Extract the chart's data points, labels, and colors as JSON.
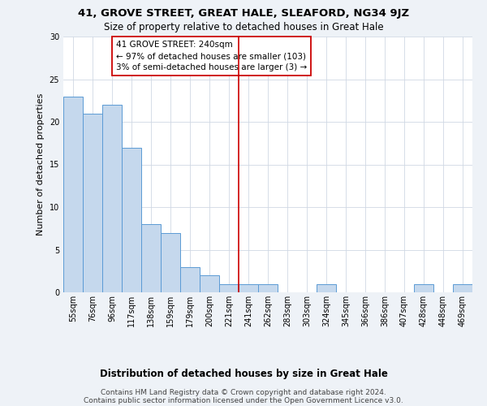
{
  "title": "41, GROVE STREET, GREAT HALE, SLEAFORD, NG34 9JZ",
  "subtitle": "Size of property relative to detached houses in Great Hale",
  "xlabel": "Distribution of detached houses by size in Great Hale",
  "ylabel": "Number of detached properties",
  "bar_labels": [
    "55sqm",
    "76sqm",
    "96sqm",
    "117sqm",
    "138sqm",
    "159sqm",
    "179sqm",
    "200sqm",
    "221sqm",
    "241sqm",
    "262sqm",
    "283sqm",
    "303sqm",
    "324sqm",
    "345sqm",
    "366sqm",
    "386sqm",
    "407sqm",
    "428sqm",
    "448sqm",
    "469sqm"
  ],
  "bar_values": [
    23,
    21,
    22,
    17,
    8,
    7,
    3,
    2,
    1,
    1,
    1,
    0,
    0,
    1,
    0,
    0,
    0,
    0,
    1,
    0,
    1
  ],
  "bar_color": "#c5d8ed",
  "bar_edge_color": "#5b9bd5",
  "vline_x": 9.0,
  "vline_color": "#cc0000",
  "annotation_title": "41 GROVE STREET: 240sqm",
  "annotation_line1": "← 97% of detached houses are smaller (103)",
  "annotation_line2": "3% of semi-detached houses are larger (3) →",
  "annotation_box_color": "#cc0000",
  "ylim": [
    0,
    30
  ],
  "yticks": [
    0,
    5,
    10,
    15,
    20,
    25,
    30
  ],
  "footer_line1": "Contains HM Land Registry data © Crown copyright and database right 2024.",
  "footer_line2": "Contains public sector information licensed under the Open Government Licence v3.0.",
  "bg_color": "#eef2f7",
  "plot_bg_color": "#ffffff",
  "title_fontsize": 9.5,
  "subtitle_fontsize": 8.5,
  "ylabel_fontsize": 8,
  "xlabel_fontsize": 8.5,
  "tick_fontsize": 7,
  "annotation_fontsize": 7.5,
  "footer_fontsize": 6.5
}
